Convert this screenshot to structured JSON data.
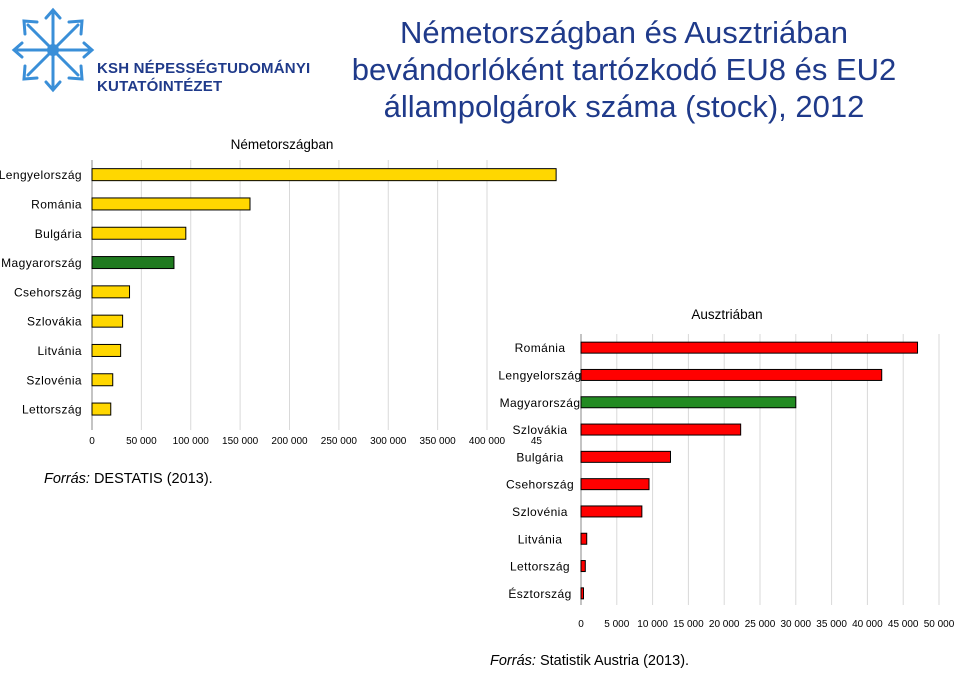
{
  "header": {
    "title_lines": [
      "Németországban és Ausztriában",
      "bevándorlóként tartózkodó EU8 és EU2",
      "állampolgárok száma (stock), 2012"
    ],
    "logo_line1": "KSH NÉPESSÉGTUDOMÁNYI",
    "logo_line2": "KUTATÓINTÉZET",
    "logo_icon": "ksh-logo-icon"
  },
  "colors": {
    "default_bar": "#ffd700",
    "hungary_bar_germany": "#1f7a1f",
    "austria_bar": "#ff0000",
    "hungary_bar_austria": "#228b22"
  },
  "sources": {
    "germany": {
      "label": "Forrás:",
      "text": "DESTATIS (2013)."
    },
    "austria": {
      "label": "Forrás:",
      "text": "Statistik Austria (2013)."
    }
  },
  "chart_data": [
    {
      "type": "bar",
      "orientation": "horizontal",
      "title": "Németországban",
      "categories": [
        "Lengyelország",
        "Románia",
        "Bulgária",
        "Magyarország",
        "Csehország",
        "Szlovákia",
        "Litvánia",
        "Szlovénia",
        "Lettország"
      ],
      "values": [
        470000,
        160000,
        95000,
        83000,
        38000,
        31000,
        29000,
        21000,
        19000
      ],
      "tick_labels": [
        "0",
        "50 000",
        "100 000",
        "150 000",
        "200 000",
        "250 000",
        "300 000",
        "350 000",
        "400 000",
        "45"
      ],
      "xlim": [
        0,
        450000
      ],
      "grid": true,
      "highlight": "Magyarország"
    },
    {
      "type": "bar",
      "orientation": "horizontal",
      "title": "Ausztriában",
      "categories": [
        "Románia",
        "Lengyelország",
        "Magyarország",
        "Szlovákia",
        "Bulgária",
        "Csehország",
        "Szlovénia",
        "Litvánia",
        "Lettország",
        "Észtország"
      ],
      "values": [
        47000,
        42000,
        30000,
        22300,
        12500,
        9500,
        8500,
        800,
        600,
        200
      ],
      "tick_labels": [
        "0",
        "5 000",
        "10 000",
        "15 000",
        "20 000",
        "25 000",
        "30 000",
        "35 000",
        "40 000",
        "45 000",
        "50 000"
      ],
      "xlim": [
        0,
        50000
      ],
      "grid": true,
      "highlight": "Magyarország"
    }
  ]
}
